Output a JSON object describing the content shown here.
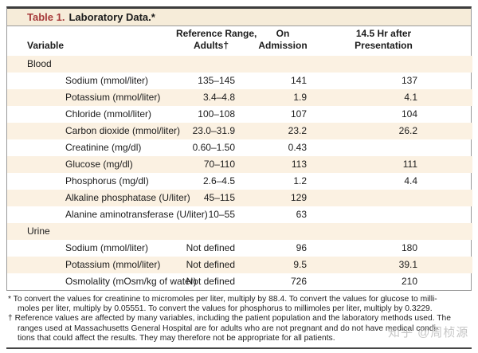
{
  "title": {
    "label": "Table 1.",
    "text": "Laboratory Data.*"
  },
  "columns": {
    "variable": "Variable",
    "ref_line1": "Reference Range,",
    "ref_line2": "Adults†",
    "adm_line1": "On",
    "adm_line2": "Admission",
    "pres_line1": "14.5 Hr after",
    "pres_line2": "Presentation"
  },
  "rows": [
    {
      "type": "section",
      "variable": "Blood"
    },
    {
      "type": "item",
      "variable": "Sodium (mmol/liter)",
      "ref": "135–145",
      "admission": "141",
      "after": "137"
    },
    {
      "type": "item",
      "variable": "Potassium (mmol/liter)",
      "ref": "3.4–4.8",
      "admission": "1.9",
      "after": "4.1"
    },
    {
      "type": "item",
      "variable": "Chloride (mmol/liter)",
      "ref": "100–108",
      "admission": "107",
      "after": "104"
    },
    {
      "type": "item",
      "variable": "Carbon dioxide (mmol/liter)",
      "ref": "23.0–31.9",
      "admission": "23.2",
      "after": "26.2"
    },
    {
      "type": "item",
      "variable": "Creatinine (mg/dl)",
      "ref": "0.60–1.50",
      "admission": "0.43",
      "after": ""
    },
    {
      "type": "item",
      "variable": "Glucose (mg/dl)",
      "ref": "70–110",
      "admission": "113",
      "after": "111"
    },
    {
      "type": "item",
      "variable": "Phosphorus (mg/dl)",
      "ref": "2.6–4.5",
      "admission": "1.2",
      "after": "4.4"
    },
    {
      "type": "item",
      "variable": "Alkaline phosphatase (U/liter)",
      "ref": "45–115",
      "admission": "129",
      "after": ""
    },
    {
      "type": "item",
      "variable": "Alanine aminotransferase (U/liter)",
      "ref": "10–55",
      "admission": "63",
      "after": ""
    },
    {
      "type": "section",
      "variable": "Urine"
    },
    {
      "type": "item",
      "variable": "Sodium (mmol/liter)",
      "ref": "Not defined",
      "admission": "96",
      "after": "180"
    },
    {
      "type": "item",
      "variable": "Potassium (mmol/liter)",
      "ref": "Not defined",
      "admission": "9.5",
      "after": "39.1"
    },
    {
      "type": "item",
      "variable": "Osmolality (mOsm/kg of water)",
      "ref": "Not defined",
      "admission": "726",
      "after": "210"
    }
  ],
  "footnotes": {
    "note1_line1": "* To convert the values for creatinine to micromoles per liter, multiply by 88.4. To convert the values for glucose to milli-",
    "note1_line2": "moles per liter, multiply by 0.05551. To convert the values for phosphorus to millimoles per liter, multiply by 0.3229.",
    "note2_line1": "† Reference values are affected by many variables, including the patient population and the laboratory methods used. The",
    "note2_line2": "ranges used at Massachusetts General Hospital are for adults who are not pregnant and do not have medical condi-",
    "note2_line3": "tions that could affect the results. They may therefore not be appropriate for all patients."
  },
  "watermark": {
    "text": "知乎 @周桢源"
  },
  "colors": {
    "title_red": "#a63a3a",
    "stripe_cream": "#fbf1e2",
    "title_bar_cream": "#f6ecd9",
    "top_rule": "#3c3c3c",
    "side_rule": "#9a9a9a"
  }
}
